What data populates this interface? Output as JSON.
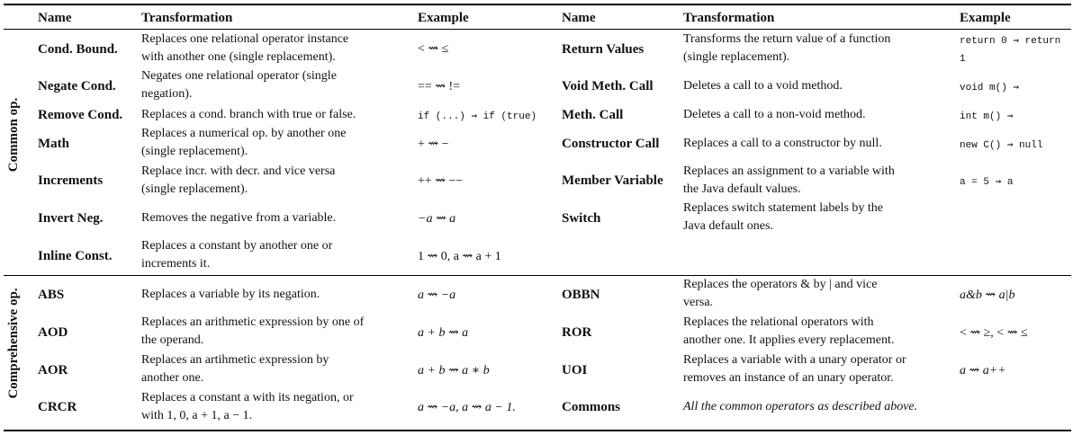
{
  "headers": {
    "name_left": "Name",
    "transformation_left": "Transformation",
    "example_left": "Example",
    "name_right": "Name",
    "transformation_right": "Transformation",
    "example_right": "Example"
  },
  "sections": {
    "common_label": "Common op.",
    "comprehensive_label": "Comprehensive op."
  },
  "common_rows": [
    {
      "name_l": "Cond. Bound.",
      "desc_l_1": "Replaces one relational operator instance",
      "desc_l_2": "with another one (single replacement).",
      "ex_l": "< ⇝ ≤",
      "name_r": "Return Values",
      "desc_r_1": "Transforms the return value of a function",
      "desc_r_2": "(single replacement).",
      "ex_r_1": "return 0 ⇝ return",
      "ex_r_2": "1"
    },
    {
      "name_l": "Negate Cond.",
      "desc_l_1": "Negates one relational operator (single",
      "desc_l_2": "negation).",
      "ex_l": "== ⇝ !=",
      "name_r": "Void Meth. Call",
      "desc_r_1": "Deletes a call to a void method.",
      "ex_r_1": "void m() ⇝"
    },
    {
      "name_l": "Remove Cond.",
      "desc_l_1": "Replaces a cond. branch with true or false.",
      "ex_l": "if (...) ⇝ if (true)",
      "name_r": "Meth. Call",
      "desc_r_1": "Deletes a call to a non-void method.",
      "ex_r_1": "int m() ⇝"
    },
    {
      "name_l": "Math",
      "desc_l_1": "Replaces a numerical op. by another one",
      "desc_l_2": "(single replacement).",
      "ex_l": "+ ⇝ −",
      "name_r": "Constructor Call",
      "desc_r_1": "Replaces a call to a constructor by null.",
      "ex_r_1": "new C() ⇝ null"
    },
    {
      "name_l": "Increments",
      "desc_l_1": "Replace incr. with decr. and vice versa",
      "desc_l_2": "(single replacement).",
      "ex_l": "++ ⇝ −−",
      "name_r": "Member Variable",
      "desc_r_1": "Replaces an assignment to a variable with",
      "desc_r_2": "the Java default values.",
      "ex_r_1": "a = 5 ⇝ a"
    },
    {
      "name_l": "Invert Neg.",
      "desc_l_1": "Removes the negative from a variable.",
      "ex_l": "−a ⇝ a",
      "name_r": "Switch",
      "desc_r_1": "Replaces switch statement labels by the",
      "desc_r_2": "Java default ones."
    },
    {
      "name_l": "Inline Const.",
      "desc_l_1": "Replaces a constant by another one or",
      "desc_l_2": "increments it.",
      "ex_l": "1 ⇝ 0, a ⇝ a + 1"
    }
  ],
  "comprehensive_rows": [
    {
      "name_l": "ABS",
      "desc_l_1": "Replaces a variable by its negation.",
      "ex_l": "a ⇝ −a",
      "name_r": "OBBN",
      "desc_r_1": "Replaces the operators & by | and vice",
      "desc_r_2": "versa.",
      "ex_r_1": "a&b ⇝ a|b"
    },
    {
      "name_l": "AOD",
      "desc_l_1": "Replaces an arithmetic expression by one of",
      "desc_l_2": "the operand.",
      "ex_l": "a + b ⇝ a",
      "name_r": "ROR",
      "desc_r_1": "Replaces the relational operators with",
      "desc_r_2": "another one. It applies every replacement.",
      "ex_r_1": "< ⇝ ≥, < ⇝ ≤"
    },
    {
      "name_l": "AOR",
      "desc_l_1": "Replaces an artihmetic expression by",
      "desc_l_2": "another one.",
      "ex_l": "a + b ⇝ a ∗ b",
      "name_r": "UOI",
      "desc_r_1": "Replaces a variable with a unary operator or",
      "desc_r_2": "removes an instance of an unary operator.",
      "ex_r_1": "a ⇝ a++"
    },
    {
      "name_l": "CRCR",
      "desc_l_1": "Replaces a constant a with its negation, or",
      "desc_l_2": "with 1, 0, a + 1, a − 1.",
      "ex_l": "a ⇝ −a, a ⇝ a − 1.",
      "name_r": "Commons",
      "desc_r_1": "All the common operators as described above."
    }
  ]
}
